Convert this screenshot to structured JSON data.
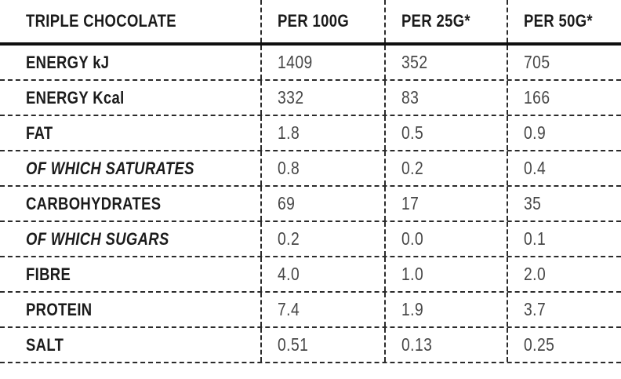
{
  "table": {
    "title": "TRIPLE CHOCOLATE",
    "columns": [
      "PER 100G",
      "PER 25G*",
      "PER 50G*"
    ],
    "rows": [
      {
        "label": "ENERGY kJ",
        "italic": false,
        "values": [
          "1409",
          "352",
          "705"
        ]
      },
      {
        "label": "ENERGY Kcal",
        "italic": false,
        "values": [
          "332",
          "83",
          "166"
        ]
      },
      {
        "label": "FAT",
        "italic": false,
        "values": [
          "1.8",
          "0.5",
          "0.9"
        ]
      },
      {
        "label": "OF WHICH SATURATES",
        "italic": true,
        "values": [
          "0.8",
          "0.2",
          "0.4"
        ]
      },
      {
        "label": "CARBOHYDRATES",
        "italic": false,
        "values": [
          "69",
          "17",
          "35"
        ]
      },
      {
        "label": "OF WHICH SUGARS",
        "italic": true,
        "values": [
          "0.2",
          "0.0",
          "0.1"
        ]
      },
      {
        "label": "FIBRE",
        "italic": false,
        "values": [
          "4.0",
          "1.0",
          "2.0"
        ]
      },
      {
        "label": "PROTEIN",
        "italic": false,
        "values": [
          "7.4",
          "1.9",
          "3.7"
        ]
      },
      {
        "label": "SALT",
        "italic": false,
        "values": [
          "0.51",
          "0.13",
          "0.25"
        ]
      }
    ],
    "colors": {
      "label_text": "#1b1b1b",
      "value_text": "#474747",
      "rule": "#0f0f0f",
      "dashed_rule": "#2b2b2b",
      "background": "#ffffff"
    }
  }
}
